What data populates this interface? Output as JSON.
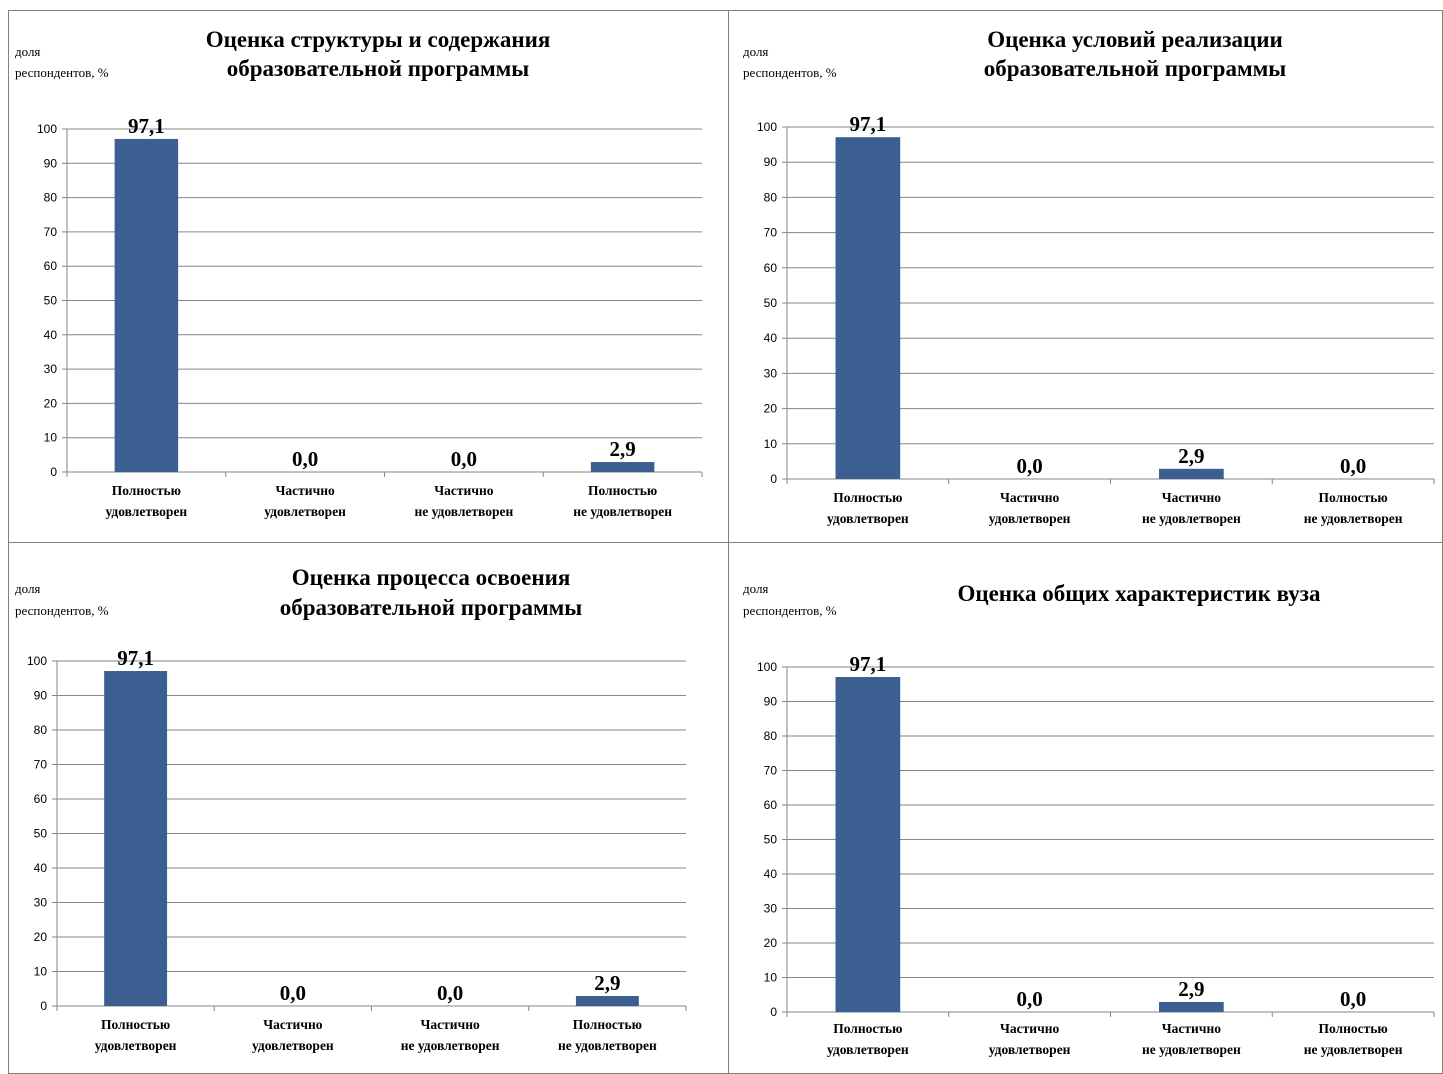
{
  "chart_data": [
    {
      "type": "bar",
      "title": [
        "Оценка структуры и содержания",
        "образовательной программы"
      ],
      "ylabel": [
        "доля",
        "респондентов, %"
      ],
      "categories": [
        [
          "Полностью",
          "удовлетворен"
        ],
        [
          "Частично",
          "удовлетворен"
        ],
        [
          "Частично",
          "не удовлетворен"
        ],
        [
          "Полностью",
          "не удовлетворен"
        ]
      ],
      "values": [
        97.1,
        0.0,
        0.0,
        2.9
      ],
      "data_labels": [
        "97,1",
        "0,0",
        "0,0",
        "2,9"
      ],
      "ylim": [
        0,
        100
      ],
      "yticks": [
        "0",
        "10",
        "20",
        "30",
        "40",
        "50",
        "60",
        "70",
        "80",
        "90",
        "100"
      ],
      "grid": true
    },
    {
      "type": "bar",
      "title": [
        "Оценка условий реализации",
        "образовательной программы"
      ],
      "ylabel": [
        "доля",
        "респондентов, %"
      ],
      "categories": [
        [
          "Полностью",
          "удовлетворен"
        ],
        [
          "Частично",
          "удовлетворен"
        ],
        [
          "Частично",
          "не удовлетворен"
        ],
        [
          "Полностью",
          "не удовлетворен"
        ]
      ],
      "values": [
        97.1,
        0.0,
        2.9,
        0.0
      ],
      "data_labels": [
        "97,1",
        "0,0",
        "2,9",
        "0,0"
      ],
      "ylim": [
        0,
        100
      ],
      "yticks": [
        "0",
        "10",
        "20",
        "30",
        "40",
        "50",
        "60",
        "70",
        "80",
        "90",
        "100"
      ],
      "grid": true
    },
    {
      "type": "bar",
      "title": [
        "Оценка процесса освоения",
        "образовательной программы"
      ],
      "ylabel": [
        "доля",
        "респондентов, %"
      ],
      "categories": [
        [
          "Полностью",
          "удовлетворен"
        ],
        [
          "Частично",
          "удовлетворен"
        ],
        [
          "Частично",
          "не удовлетворен"
        ],
        [
          "Полностью",
          "не удовлетворен"
        ]
      ],
      "values": [
        97.1,
        0.0,
        0.0,
        2.9
      ],
      "data_labels": [
        "97,1",
        "0,0",
        "0,0",
        "2,9"
      ],
      "ylim": [
        0,
        100
      ],
      "yticks": [
        "0",
        "10",
        "20",
        "30",
        "40",
        "50",
        "60",
        "70",
        "80",
        "90",
        "100"
      ],
      "grid": true
    },
    {
      "type": "bar",
      "title": [
        "Оценка общих характеристик вуза"
      ],
      "ylabel": [
        "доля",
        "респондентов, %"
      ],
      "categories": [
        [
          "Полностью",
          "удовлетворен"
        ],
        [
          "Частично",
          "удовлетворен"
        ],
        [
          "Частично",
          "не удовлетворен"
        ],
        [
          "Полностью",
          "не удовлетворен"
        ]
      ],
      "values": [
        97.1,
        0.0,
        2.9,
        0.0
      ],
      "data_labels": [
        "97,1",
        "0,0",
        "2,9",
        "0,0"
      ],
      "ylim": [
        0,
        100
      ],
      "yticks": [
        "0",
        "10",
        "20",
        "30",
        "40",
        "50",
        "60",
        "70",
        "80",
        "90",
        "100"
      ],
      "grid": true
    }
  ],
  "colors": {
    "bar": "#3B5F91",
    "grid": "#868686",
    "axis": "#868686",
    "frame": "#808080"
  }
}
